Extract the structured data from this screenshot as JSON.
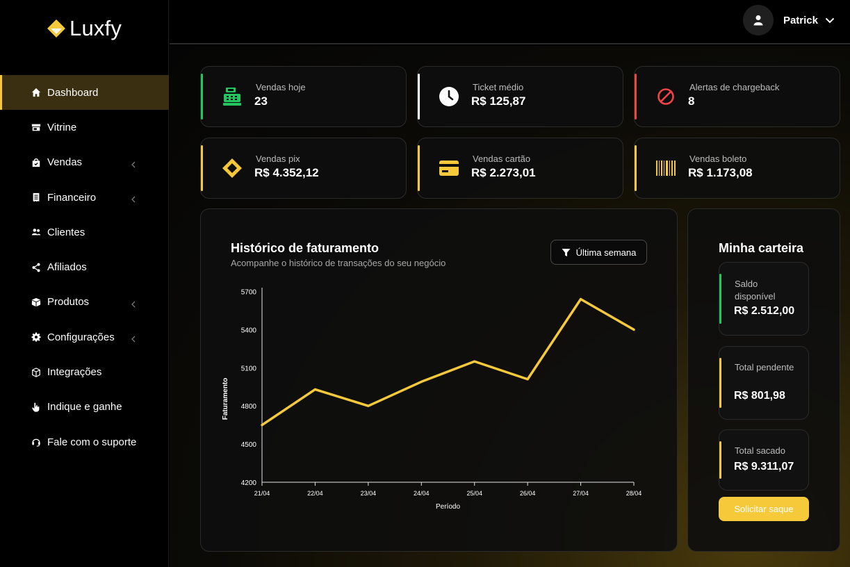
{
  "app": {
    "name": "Luxfy"
  },
  "user": {
    "name": "Patrick"
  },
  "sidebar": {
    "items": [
      {
        "label": "Dashboard",
        "icon": "home-icon",
        "active": true,
        "chevron": false
      },
      {
        "label": "Vitrine",
        "icon": "store-icon",
        "active": false,
        "chevron": false
      },
      {
        "label": "Vendas",
        "icon": "shopping-bag-icon",
        "active": false,
        "chevron": true
      },
      {
        "label": "Financeiro",
        "icon": "receipt-icon",
        "active": false,
        "chevron": true
      },
      {
        "label": "Clientes",
        "icon": "users-icon",
        "active": false,
        "chevron": false
      },
      {
        "label": "Afiliados",
        "icon": "share-icon",
        "active": false,
        "chevron": false
      },
      {
        "label": "Produtos",
        "icon": "box-icon",
        "active": false,
        "chevron": true
      },
      {
        "label": "Configurações",
        "icon": "gear-icon",
        "active": false,
        "chevron": true
      },
      {
        "label": "Integrações",
        "icon": "cubes-icon",
        "active": false,
        "chevron": false
      },
      {
        "label": "Indique e ganhe",
        "icon": "hand-pointer-icon",
        "active": false,
        "chevron": false
      },
      {
        "label": "Fale com o suporte",
        "icon": "headset-icon",
        "active": false,
        "chevron": false
      }
    ]
  },
  "stats": [
    {
      "label": "Vendas hoje",
      "value": "23",
      "icon": "cash-register-icon",
      "accent": "#22c55e"
    },
    {
      "label": "Ticket médio",
      "value": "R$ 125,87",
      "icon": "clock-icon",
      "accent": "#ffffff"
    },
    {
      "label": "Alertas de chargeback",
      "value": "8",
      "icon": "ban-icon",
      "accent": "#ef4444"
    },
    {
      "label": "Vendas pix",
      "value": "R$ 4.352,12",
      "icon": "pix-icon",
      "accent": "#f6c93b"
    },
    {
      "label": "Vendas cartão",
      "value": "R$ 2.273,01",
      "icon": "credit-card-icon",
      "accent": "#f6c93b"
    },
    {
      "label": "Vendas boleto",
      "value": "R$ 1.173,08",
      "icon": "barcode-icon",
      "accent": "#f6c93b"
    }
  ],
  "chart": {
    "title": "Histórico de faturamento",
    "subtitle": "Acompanhe o histórico de transações do seu negócio",
    "filter_label": "Última semana"
  },
  "chart_data": {
    "type": "line",
    "xlabel": "Período",
    "ylabel": "Faturamento",
    "categories": [
      "21/04",
      "22/04",
      "23/04",
      "24/04",
      "25/04",
      "26/04",
      "27/04",
      "28/04"
    ],
    "yticks": [
      4200,
      4500,
      4800,
      5100,
      5400,
      5700
    ],
    "ylim": [
      4200,
      5730
    ],
    "series": [
      {
        "values": [
          4650,
          4930,
          4800,
          4990,
          5150,
          5010,
          5640,
          5400
        ],
        "color": "#f6c93b"
      }
    ],
    "grid": false
  },
  "wallet": {
    "title": "Minha carteira",
    "items": [
      {
        "label": "Saldo disponível",
        "value": "R$ 2.512,00",
        "accent": "#22c55e"
      },
      {
        "label": "Total pendente",
        "value": "R$ 801,98",
        "accent": "#f6c93b"
      },
      {
        "label": "Total sacado",
        "value": "R$ 9.311,07",
        "accent": "#f6c93b"
      }
    ],
    "withdraw_label": "Solicitar saque"
  }
}
